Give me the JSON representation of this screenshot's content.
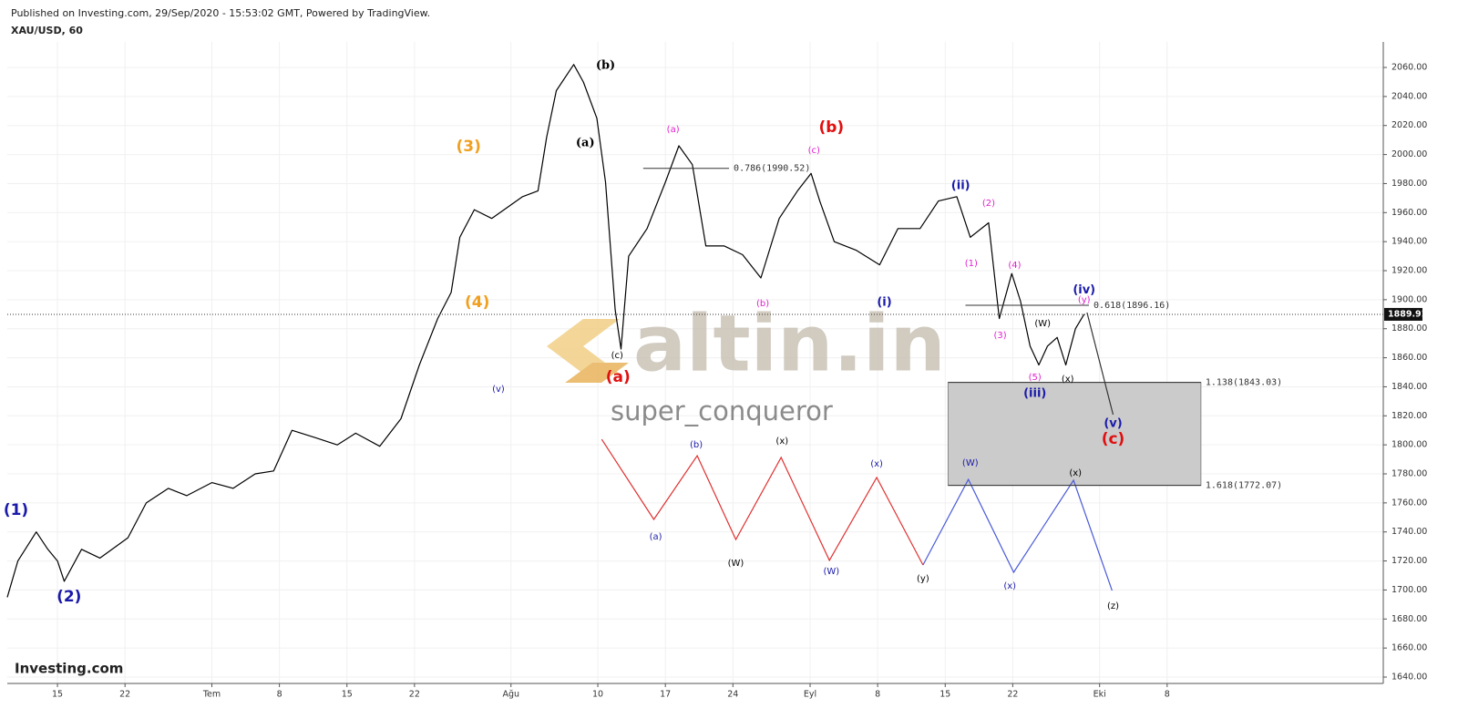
{
  "chart_data": {
    "type": "line",
    "header": "Published on Investing.com, 29/Sep/2020 - 15:53:02 GMT, Powered by TradingView.",
    "title": "XAU/USD, 60",
    "watermark": "altin.in",
    "author": "super_conqueror",
    "brand": "Investing.com",
    "grid": true,
    "xlim": [
      161.8,
      304.4
    ],
    "ylim": [
      1635.6,
      2077.6
    ],
    "xticks": [
      {
        "value": 167,
        "label": "15"
      },
      {
        "value": 174,
        "label": "22"
      },
      {
        "value": 183,
        "label": "Tem"
      },
      {
        "value": 190,
        "label": "8"
      },
      {
        "value": 197,
        "label": "15"
      },
      {
        "value": 204,
        "label": "22"
      },
      {
        "value": 214,
        "label": "Ağu"
      },
      {
        "value": 223,
        "label": "10"
      },
      {
        "value": 230,
        "label": "17"
      },
      {
        "value": 237,
        "label": "24"
      },
      {
        "value": 245,
        "label": "Eyl"
      },
      {
        "value": 252,
        "label": "8"
      },
      {
        "value": 259,
        "label": "15"
      },
      {
        "value": 266,
        "label": "22"
      },
      {
        "value": 275,
        "label": "Eki"
      },
      {
        "value": 282,
        "label": "8"
      }
    ],
    "yticks": [
      {
        "value": 1640,
        "label": "1640.00"
      },
      {
        "value": 1660,
        "label": "1660.00"
      },
      {
        "value": 1680,
        "label": "1680.00"
      },
      {
        "value": 1700,
        "label": "1700.00"
      },
      {
        "value": 1720,
        "label": "1720.00"
      },
      {
        "value": 1740,
        "label": "1740.00"
      },
      {
        "value": 1760,
        "label": "1760.00"
      },
      {
        "value": 1780,
        "label": "1780.00"
      },
      {
        "value": 1800,
        "label": "1800.00"
      },
      {
        "value": 1820,
        "label": "1820.00"
      },
      {
        "value": 1840,
        "label": "1840.00"
      },
      {
        "value": 1860,
        "label": "1860.00"
      },
      {
        "value": 1880,
        "label": "1880.00"
      },
      {
        "value": 1900,
        "label": "1900.00"
      },
      {
        "value": 1920,
        "label": "1920.00"
      },
      {
        "value": 1940,
        "label": "1940.00"
      },
      {
        "value": 1960,
        "label": "1960.00"
      },
      {
        "value": 1980,
        "label": "1980.00"
      },
      {
        "value": 2000,
        "label": "2000.00"
      },
      {
        "value": 2020,
        "label": "2020.00"
      },
      {
        "value": 2040,
        "label": "2040.00"
      },
      {
        "value": 2060,
        "label": "2060.00"
      }
    ],
    "last_price": 1889.91,
    "series": [
      {
        "color": "#000000",
        "x": [
          161.8,
          162.9,
          164.8,
          166,
          167,
          167.7,
          169.5,
          171.4,
          174.3,
          176.2,
          178.5,
          180.4,
          183,
          185.2,
          187.5,
          189.4,
          191.3,
          193.7,
          196,
          197.9,
          200.4,
          202.6,
          204.5,
          206.4,
          207.8,
          208.7,
          210.2,
          212,
          215.2,
          216.8,
          217.7,
          218.7,
          220.5,
          221.5,
          222.9,
          223.8,
          224.8,
          225.4,
          226.2,
          228.1,
          230,
          231.4,
          232.8,
          234.2,
          236.1,
          238,
          239.9,
          241.8,
          243.7,
          245.1,
          246,
          247.5,
          249.8,
          252.2,
          254.1,
          256.4,
          258.3,
          260.2,
          261.6,
          263.5,
          264.6,
          265.9,
          266.8,
          267.8,
          268.7,
          269.6,
          270.6,
          271.5,
          272.5,
          273.4
        ],
        "values": [
          1695,
          1720,
          1740,
          1728,
          1720,
          1706,
          1728,
          1722,
          1736,
          1760,
          1770,
          1765,
          1774,
          1770,
          1780,
          1782,
          1810,
          1805,
          1800,
          1808,
          1799,
          1818,
          1855,
          1887,
          1905,
          1943,
          1962,
          1956,
          1971,
          1975,
          2012,
          2044,
          2062,
          2050,
          2025,
          1981,
          1893,
          1866,
          1930,
          1949,
          1981,
          2006,
          1993,
          1937,
          1937,
          1931,
          1915,
          1956,
          1975,
          1987,
          1968,
          1940,
          1934,
          1924,
          1949,
          1949,
          1968,
          1971,
          1943,
          1953,
          1887,
          1918,
          1899,
          1868,
          1855,
          1868,
          1874,
          1855,
          1880,
          1890
        ]
      }
    ],
    "projections": [
      {
        "color": "#e03030",
        "x": [
          223.4,
          228.8,
          233.3,
          237.3,
          242,
          247,
          251.9,
          256.7
        ],
        "values": [
          1803.8,
          1748.6,
          1792.5,
          1734.8,
          1791.3,
          1720.4,
          1777.5,
          1717.2
        ]
      },
      {
        "color": "#4a5ad8",
        "x": [
          256.7,
          261.4,
          266.1,
          272.3,
          276.3
        ],
        "values": [
          1717.2,
          1776.2,
          1712.2,
          1775.6,
          1699.6
        ]
      },
      {
        "color": "#333333",
        "x": [
          273.7,
          276.4
        ],
        "values": [
          1891.1,
          1820.8
        ]
      }
    ],
    "levels": [
      {
        "label": "0.786(1990.52)",
        "value": 1990.52,
        "x": [
          227.7,
          236.6
        ]
      },
      {
        "label": "0.618(1896.16)",
        "value": 1896.16,
        "x": [
          261.1,
          273.9
        ]
      },
      {
        "label": "1.138(1843.03)",
        "value": 1843.03,
        "x": [
          259.3,
          285.5
        ]
      },
      {
        "label": "1.618(1772.07)",
        "value": 1772.07,
        "x": [
          259.3,
          285.5
        ]
      }
    ],
    "shaded_between": [
      2,
      3
    ],
    "shade_color": "#cbcbcb",
    "annotations": [
      {
        "text": "(1)",
        "color": "#1a1aaa",
        "size": "large",
        "x": 162.7,
        "y": 1754.9
      },
      {
        "text": "(2)",
        "color": "#1a1aaa",
        "size": "large",
        "x": 168.2,
        "y": 1695.2
      },
      {
        "text": "(3)",
        "color": "#f0a020",
        "size": "large",
        "x": 209.6,
        "y": 2005.3
      },
      {
        "text": "(4)",
        "color": "#f0a020",
        "size": "large",
        "x": 210.5,
        "y": 1898
      },
      {
        "text": "(v)",
        "color": "#1a1aaa",
        "size": "small",
        "x": 212.7,
        "y": 1838.4
      },
      {
        "text": "(b)",
        "color": "#000000",
        "size": "medium",
        "x": 223.8,
        "y": 2061.2
      },
      {
        "text": "(a)",
        "color": "#000000",
        "size": "medium",
        "x": 221.7,
        "y": 2007.9
      },
      {
        "text": "(c)",
        "color": "#000000",
        "size": "small",
        "x": 225,
        "y": 1861.6
      },
      {
        "text": "(a)",
        "color": "#e01010",
        "size": "large",
        "x": 225.1,
        "y": 1846.5
      },
      {
        "text": "(a)",
        "color": "#e020d0",
        "size": "small",
        "x": 230.8,
        "y": 2017.3
      },
      {
        "text": "(c)",
        "color": "#e020d0",
        "size": "small",
        "x": 245.4,
        "y": 2002.8
      },
      {
        "text": "(b)",
        "color": "#e01010",
        "size": "large",
        "x": 247.2,
        "y": 2018.5
      },
      {
        "text": "(b)",
        "color": "#e020d0",
        "size": "small",
        "x": 240.1,
        "y": 1897.4
      },
      {
        "text": "(i)",
        "color": "#1a1aaa",
        "size": "medium",
        "x": 252.7,
        "y": 1898
      },
      {
        "text": "(ii)",
        "color": "#1a1aaa",
        "size": "medium",
        "x": 260.6,
        "y": 1978.4
      },
      {
        "text": "(2)",
        "color": "#e020d0",
        "size": "small",
        "x": 263.5,
        "y": 1966.4
      },
      {
        "text": "(1)",
        "color": "#e020d0",
        "size": "small",
        "x": 261.7,
        "y": 1925
      },
      {
        "text": "(4)",
        "color": "#e020d0",
        "size": "small",
        "x": 266.2,
        "y": 1923.7
      },
      {
        "text": "(3)",
        "color": "#e020d0",
        "size": "small",
        "x": 264.7,
        "y": 1875.4
      },
      {
        "text": "(W)",
        "color": "#000000",
        "size": "small",
        "x": 269.1,
        "y": 1883.6
      },
      {
        "text": "(5)",
        "color": "#e020d0",
        "size": "small",
        "x": 268.3,
        "y": 1846.5
      },
      {
        "text": "(x)",
        "color": "#000000",
        "size": "small",
        "x": 271.7,
        "y": 1845.3
      },
      {
        "text": "(iii)",
        "color": "#1a1aaa",
        "size": "medium",
        "x": 268.3,
        "y": 1835.2
      },
      {
        "text": "(iv)",
        "color": "#1a1aaa",
        "size": "medium",
        "x": 273.4,
        "y": 1906.5
      },
      {
        "text": "(y)",
        "color": "#e020d0",
        "size": "small",
        "x": 273.4,
        "y": 1900
      },
      {
        "text": "(v)",
        "color": "#1a1aaa",
        "size": "medium",
        "x": 276.4,
        "y": 1814.5
      },
      {
        "text": "(c)",
        "color": "#e01010",
        "size": "large",
        "x": 276.4,
        "y": 1803.8
      },
      {
        "text": "(a)",
        "color": "#1a1aaa",
        "size": "small",
        "x": 229,
        "y": 1736.7
      },
      {
        "text": "(b)",
        "color": "#1a1aaa",
        "size": "small",
        "x": 233.2,
        "y": 1800.1
      },
      {
        "text": "(W)",
        "color": "#000000",
        "size": "small",
        "x": 237.3,
        "y": 1718.5
      },
      {
        "text": "(x)",
        "color": "#000000",
        "size": "small",
        "x": 242.1,
        "y": 1802.6
      },
      {
        "text": "(W)",
        "color": "#1a1aaa",
        "size": "small",
        "x": 247.2,
        "y": 1712.8
      },
      {
        "text": "(x)",
        "color": "#1a1aaa",
        "size": "small",
        "x": 251.9,
        "y": 1786.9
      },
      {
        "text": "(y)",
        "color": "#000000",
        "size": "small",
        "x": 256.7,
        "y": 1707.8
      },
      {
        "text": "(W)",
        "color": "#1a1aaa",
        "size": "small",
        "x": 261.6,
        "y": 1787.5
      },
      {
        "text": "(x)",
        "color": "#1a1aaa",
        "size": "small",
        "x": 265.7,
        "y": 1702.8
      },
      {
        "text": "(x)",
        "color": "#000000",
        "size": "small",
        "x": 272.5,
        "y": 1780.6
      },
      {
        "text": "(z)",
        "color": "#000000",
        "size": "small",
        "x": 276.4,
        "y": 1689
      }
    ]
  }
}
